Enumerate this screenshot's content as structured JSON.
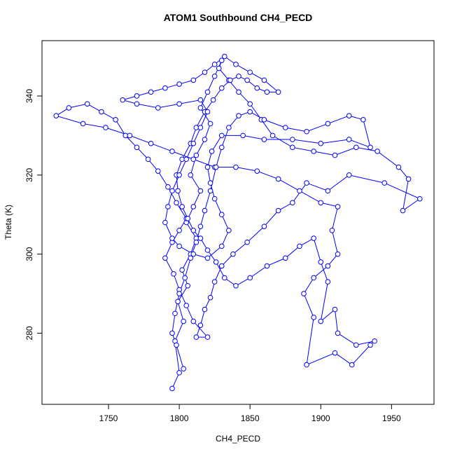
{
  "chart_data": {
    "type": "line",
    "markers": "open-circle",
    "title": "ATOM1 Southbound CH4_PECD",
    "xlabel": "CH4_PECD",
    "ylabel": "Theta (K)",
    "xlim": [
      1703,
      1980
    ],
    "ylim": [
      262,
      354
    ],
    "xticks": [
      1750,
      1800,
      1850,
      1900,
      1950
    ],
    "yticks": [
      280,
      300,
      320,
      340
    ],
    "color": "#0000ff",
    "x": [
      1795,
      1800,
      1797,
      1803,
      1799,
      1806,
      1802,
      1808,
      1812,
      1805,
      1810,
      1815,
      1808,
      1812,
      1818,
      1822,
      1815,
      1820,
      1825,
      1830,
      1828,
      1835,
      1842,
      1850,
      1858,
      1866,
      1880,
      1895,
      1910,
      1925,
      1940,
      1955,
      1962,
      1958,
      1970,
      1945,
      1920,
      1905,
      1890,
      1880,
      1870,
      1860,
      1848,
      1838,
      1830,
      1825,
      1822,
      1818,
      1815,
      1812,
      1820,
      1810,
      1805,
      1800,
      1796,
      1790,
      1795,
      1800,
      1805,
      1798,
      1792,
      1785,
      1778,
      1770,
      1762,
      1755,
      1745,
      1735,
      1722,
      1713,
      1732,
      1748,
      1765,
      1780,
      1795,
      1810,
      1825,
      1840,
      1855,
      1870,
      1885,
      1900,
      1912,
      1908,
      1912,
      1905,
      1895,
      1888,
      1895,
      1890,
      1910,
      1922,
      1935,
      1938,
      1925,
      1912,
      1910,
      1900,
      1905,
      1900,
      1895,
      1885,
      1875,
      1862,
      1850,
      1840,
      1832,
      1826,
      1820,
      1815,
      1810,
      1806,
      1802,
      1799,
      1798,
      1802,
      1808,
      1812,
      1818,
      1824,
      1830,
      1836,
      1842,
      1848,
      1855,
      1862,
      1870,
      1860,
      1850,
      1840,
      1832,
      1825,
      1818,
      1810,
      1800,
      1790,
      1780,
      1770,
      1760,
      1770,
      1785,
      1800,
      1815,
      1820,
      1815,
      1810,
      1805,
      1800,
      1795,
      1792,
      1790,
      1795,
      1800,
      1810,
      1820,
      1830,
      1835,
      1830,
      1825,
      1822,
      1820,
      1823,
      1830,
      1845,
      1860,
      1880,
      1900,
      1920,
      1935,
      1930,
      1920,
      1905,
      1890,
      1875,
      1860,
      1850,
      1842,
      1835,
      1830,
      1826,
      1822,
      1818,
      1815,
      1812,
      1808,
      1804,
      1800,
      1797,
      1795,
      1798,
      1803
    ],
    "values": [
      266,
      270,
      278,
      283,
      288,
      292,
      296,
      300,
      304,
      308,
      312,
      316,
      320,
      325,
      329,
      333,
      337,
      341,
      345,
      349,
      347,
      344,
      341,
      338,
      334,
      330,
      327,
      326,
      325,
      327,
      326,
      322,
      319,
      311,
      314,
      318,
      320,
      316,
      318,
      313,
      311,
      307,
      303,
      300,
      297,
      293,
      289,
      286,
      282,
      279,
      279,
      283,
      287,
      291,
      295,
      299,
      303,
      306,
      309,
      313,
      317,
      321,
      324,
      327,
      330,
      334,
      336,
      338,
      337,
      335,
      333,
      332,
      330,
      328,
      326,
      324,
      322,
      322,
      321,
      319,
      316,
      313,
      312,
      306,
      300,
      297,
      294,
      290,
      284,
      272,
      275,
      272,
      277,
      278,
      277,
      280,
      286,
      283,
      293,
      298,
      304,
      302,
      299,
      297,
      294,
      292,
      294,
      298,
      301,
      304,
      306,
      309,
      312,
      316,
      320,
      324,
      328,
      332,
      336,
      339,
      342,
      344,
      345,
      344,
      342,
      341,
      341,
      344,
      346,
      348,
      350,
      348,
      346,
      344,
      343,
      342,
      341,
      340,
      339,
      338,
      337,
      338,
      339,
      336,
      332,
      328,
      324,
      320,
      316,
      312,
      308,
      304,
      302,
      300,
      299,
      302,
      306,
      310,
      314,
      318,
      322,
      326,
      330,
      330,
      329,
      329,
      328,
      329,
      327,
      334,
      335,
      333,
      331,
      332,
      334,
      336,
      335,
      332,
      327,
      322,
      316,
      311,
      307,
      303,
      299,
      294,
      290,
      285,
      280,
      277,
      271
    ]
  }
}
